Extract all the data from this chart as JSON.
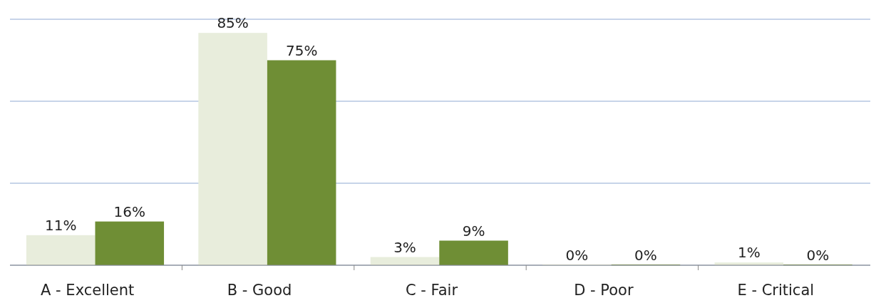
{
  "chart_data": {
    "type": "bar",
    "categories": [
      "A - Excellent",
      "B - Good",
      "C - Fair",
      "D - Poor",
      "E - Critical"
    ],
    "series": [
      {
        "color": "#e8eddc",
        "values": [
          11,
          85,
          3,
          0,
          1
        ],
        "value_labels": [
          "11%",
          "85%",
          "3%",
          "0%",
          "1%"
        ]
      },
      {
        "color": "#6f8e35",
        "values": [
          16,
          75,
          9,
          0,
          0
        ],
        "value_labels": [
          "16%",
          "75%",
          "9%",
          "0%",
          "0%"
        ]
      }
    ],
    "ylim": [
      0,
      90
    ],
    "yticks": [
      {
        "value": 0,
        "label": null
      },
      {
        "value": 30,
        "label": null
      },
      {
        "value": 60,
        "label": null
      },
      {
        "value": 90,
        "label": null
      }
    ],
    "grid": "y",
    "tick_labels": "x"
  }
}
